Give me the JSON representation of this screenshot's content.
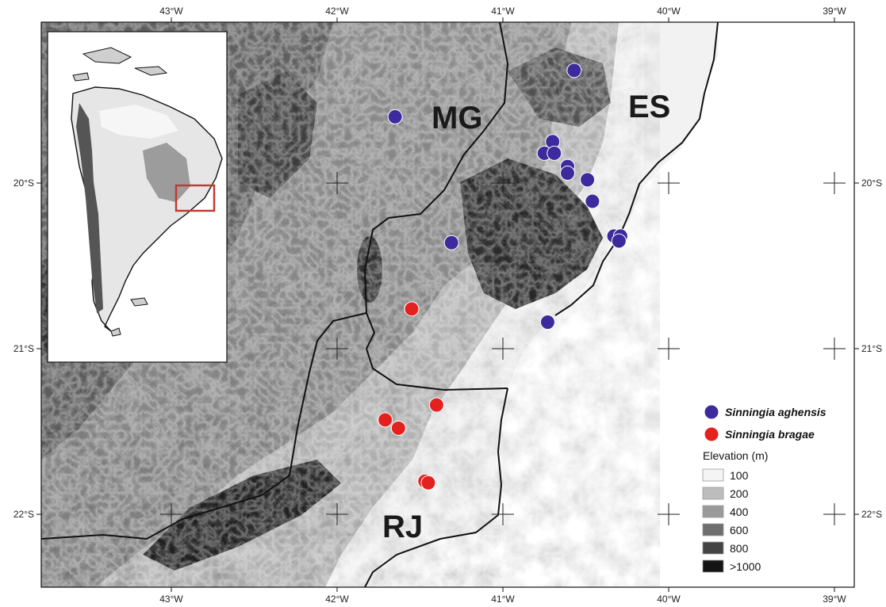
{
  "axes": {
    "longitude_ticks": [
      "43°W",
      "42°W",
      "41°W",
      "40°W",
      "39°W"
    ],
    "latitude_ticks": [
      "20°S",
      "21°S",
      "22°S"
    ]
  },
  "region_labels": [
    "MG",
    "ES",
    "RJ"
  ],
  "legend": {
    "series": [
      {
        "name": "Sinningia aghensis",
        "color": "#3d2a9c"
      },
      {
        "name": "Sinningia bragae",
        "color": "#e3221f"
      }
    ],
    "elevation_title": "Elevation (m)",
    "elevation_classes": [
      {
        "label": "100",
        "color": "#f4f4f4"
      },
      {
        "label": "200",
        "color": "#bdbdbd"
      },
      {
        "label": "400",
        "color": "#9a9a9a"
      },
      {
        "label": "600",
        "color": "#6e6e6e"
      },
      {
        "label": "800",
        "color": "#444444"
      },
      {
        "label": ">1000",
        "color": "#141414"
      }
    ]
  },
  "occurrences": {
    "sinningia_aghensis": [
      {
        "lon": -40.57,
        "lat": -19.32
      },
      {
        "lon": -41.65,
        "lat": -19.6
      },
      {
        "lon": -40.7,
        "lat": -19.75
      },
      {
        "lon": -40.75,
        "lat": -19.82
      },
      {
        "lon": -40.69,
        "lat": -19.82
      },
      {
        "lon": -40.61,
        "lat": -19.9
      },
      {
        "lon": -40.61,
        "lat": -19.94
      },
      {
        "lon": -40.49,
        "lat": -19.98
      },
      {
        "lon": -40.46,
        "lat": -20.11
      },
      {
        "lon": -40.33,
        "lat": -20.32
      },
      {
        "lon": -40.29,
        "lat": -20.32
      },
      {
        "lon": -40.3,
        "lat": -20.35
      },
      {
        "lon": -41.31,
        "lat": -20.36
      },
      {
        "lon": -40.73,
        "lat": -20.84
      }
    ],
    "sinningia_bragae": [
      {
        "lon": -41.55,
        "lat": -20.76
      },
      {
        "lon": -41.4,
        "lat": -21.34
      },
      {
        "lon": -41.71,
        "lat": -21.43
      },
      {
        "lon": -41.63,
        "lat": -21.48
      },
      {
        "lon": -41.47,
        "lat": -21.8
      },
      {
        "lon": -41.45,
        "lat": -21.81
      }
    ]
  }
}
